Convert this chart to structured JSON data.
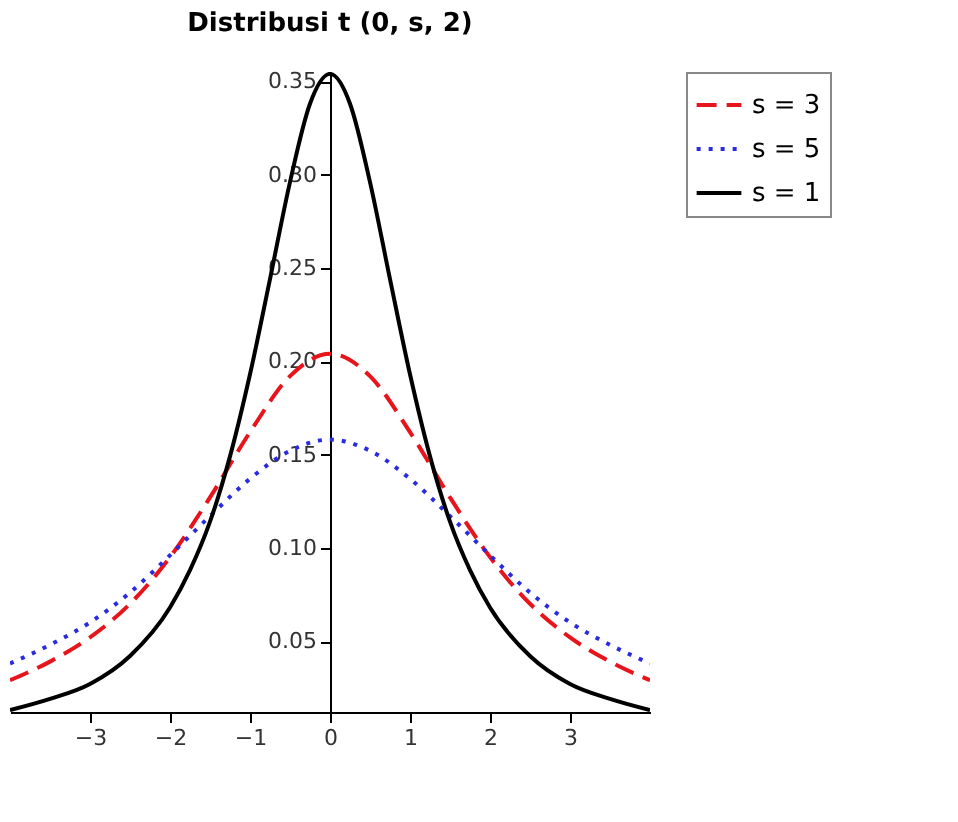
{
  "chart_data": {
    "type": "line",
    "title": "Distribusi t (0, s, 2)",
    "xlim": [
      -4,
      4
    ],
    "ylim": [
      0.012,
      0.355
    ],
    "xticks": [
      -3,
      -2,
      -1,
      0,
      1,
      2,
      3
    ],
    "yticks": [
      {
        "value": 0.05,
        "label": "0.05"
      },
      {
        "value": 0.1,
        "label": "0.10"
      },
      {
        "value": 0.15,
        "label": "0.15"
      },
      {
        "value": 0.2,
        "label": "0.20"
      },
      {
        "value": 0.25,
        "label": "0.25"
      },
      {
        "value": 0.3,
        "label": "0.30"
      },
      {
        "value": 0.35,
        "label": "0.35"
      }
    ],
    "grid": false,
    "legend": "right",
    "series": [
      {
        "name": "s = 3",
        "color": "#e8141b",
        "line_style": "dashed",
        "x": [
          -4,
          -3.5,
          -3,
          -2.5,
          -2,
          -1.5,
          -1,
          -0.5,
          0,
          0.5,
          1,
          1.5,
          2,
          2.5,
          3,
          3.5,
          4
        ],
        "values": [
          0.029,
          0.039,
          0.052,
          0.07,
          0.095,
          0.127,
          0.162,
          0.192,
          0.204,
          0.192,
          0.162,
          0.127,
          0.095,
          0.07,
          0.052,
          0.039,
          0.029
        ]
      },
      {
        "name": "s = 5",
        "color": "#2a2ae0",
        "line_style": "dotted",
        "x": [
          -4,
          -3.5,
          -3,
          -2.5,
          -2,
          -1.5,
          -1,
          -0.5,
          0,
          0.5,
          1,
          1.5,
          2,
          2.5,
          3,
          3.5,
          4
        ],
        "values": [
          0.038,
          0.048,
          0.06,
          0.076,
          0.096,
          0.117,
          0.137,
          0.152,
          0.158,
          0.152,
          0.137,
          0.117,
          0.096,
          0.076,
          0.06,
          0.048,
          0.038
        ]
      },
      {
        "name": "s = 1",
        "color": "#000000",
        "line_style": "solid",
        "x": [
          -4,
          -3.5,
          -3,
          -2.5,
          -2,
          -1.75,
          -1.5,
          -1.25,
          -1,
          -0.75,
          -0.5,
          -0.25,
          0,
          0.25,
          0.5,
          0.75,
          1,
          1.25,
          1.5,
          1.75,
          2,
          2.5,
          3,
          3.5,
          4
        ],
        "values": [
          0.013,
          0.019,
          0.027,
          0.042,
          0.068,
          0.088,
          0.114,
          0.149,
          0.193,
          0.244,
          0.296,
          0.338,
          0.354,
          0.338,
          0.296,
          0.244,
          0.193,
          0.149,
          0.114,
          0.088,
          0.068,
          0.042,
          0.027,
          0.019,
          0.013
        ]
      }
    ]
  }
}
